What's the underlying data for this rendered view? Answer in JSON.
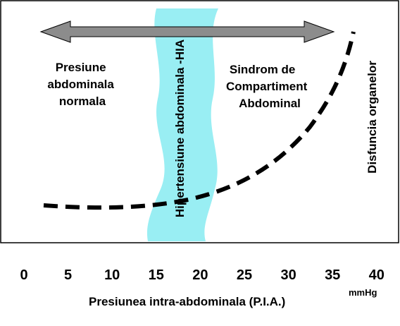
{
  "zones": {
    "normal": [
      "Presiune",
      "abdominala",
      "normala"
    ],
    "hia": "Hipertensiune abdominala -HIA",
    "sca": [
      "Sindrom de",
      "Compartiment",
      "Abdominal"
    ],
    "organ": "Disfuncia organelor"
  },
  "colors": {
    "band": "#99EEF3",
    "arrow": "#8C8C8C",
    "curve": "#000000",
    "frame": "#000000"
  },
  "axis": {
    "label": "Presiunea intra-abdominala (P.I.A.)",
    "unit": "mmHg",
    "ticks": [
      "0",
      "5",
      "10",
      "15",
      "20",
      "25",
      "30",
      "35",
      "40"
    ]
  }
}
